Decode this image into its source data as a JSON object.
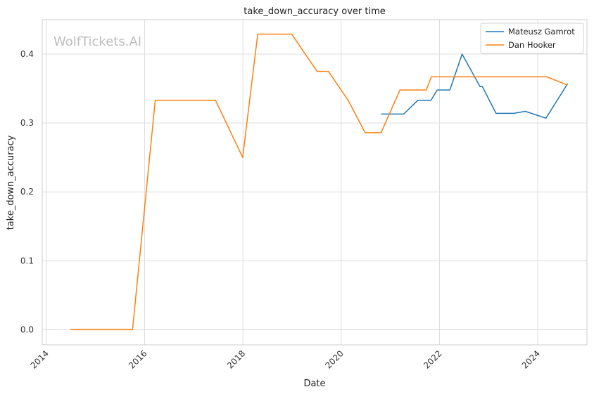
{
  "chart_data": {
    "type": "line",
    "title": "take_down_accuracy over time",
    "xlabel": "Date",
    "ylabel": "take_down_accuracy",
    "watermark": "WolfTickets.AI",
    "xlim": [
      "2013-12-01",
      "2025-01-01"
    ],
    "ylim": [
      -0.022,
      0.45
    ],
    "x_ticks": [
      "2014",
      "2016",
      "2018",
      "2020",
      "2022",
      "2024"
    ],
    "y_ticks": [
      "0.0",
      "0.1",
      "0.2",
      "0.3",
      "0.4"
    ],
    "grid": true,
    "legend_position": "top-right",
    "series": [
      {
        "name": "Mateusz Gamrot",
        "color": "#1f77b4",
        "points": [
          [
            "2020-10-24",
            0.313
          ],
          [
            "2021-04-10",
            0.313
          ],
          [
            "2021-07-24",
            0.333
          ],
          [
            "2021-10-30",
            0.333
          ],
          [
            "2021-12-15",
            0.348
          ],
          [
            "2022-03-19",
            0.348
          ],
          [
            "2022-06-18",
            0.4
          ],
          [
            "2022-10-29",
            0.353
          ],
          [
            "2022-11-15",
            0.353
          ],
          [
            "2023-02-25",
            0.314
          ],
          [
            "2023-07-08",
            0.314
          ],
          [
            "2023-10-01",
            0.317
          ],
          [
            "2024-03-02",
            0.307
          ],
          [
            "2024-08-10",
            0.357
          ]
        ]
      },
      {
        "name": "Dan Hooker",
        "color": "#ff7f0e",
        "points": [
          [
            "2014-06-28",
            0.0
          ],
          [
            "2015-10-03",
            0.0
          ],
          [
            "2016-03-20",
            0.333
          ],
          [
            "2017-06-11",
            0.333
          ],
          [
            "2017-12-30",
            0.25
          ],
          [
            "2018-04-21",
            0.429
          ],
          [
            "2018-12-29",
            0.429
          ],
          [
            "2019-07-06",
            0.375
          ],
          [
            "2019-09-28",
            0.375
          ],
          [
            "2020-02-22",
            0.333
          ],
          [
            "2020-06-27",
            0.286
          ],
          [
            "2020-10-24",
            0.286
          ],
          [
            "2021-03-13",
            0.348
          ],
          [
            "2021-09-25",
            0.348
          ],
          [
            "2021-11-01",
            0.367
          ],
          [
            "2024-03-09",
            0.367
          ],
          [
            "2024-08-10",
            0.355
          ]
        ]
      }
    ]
  }
}
